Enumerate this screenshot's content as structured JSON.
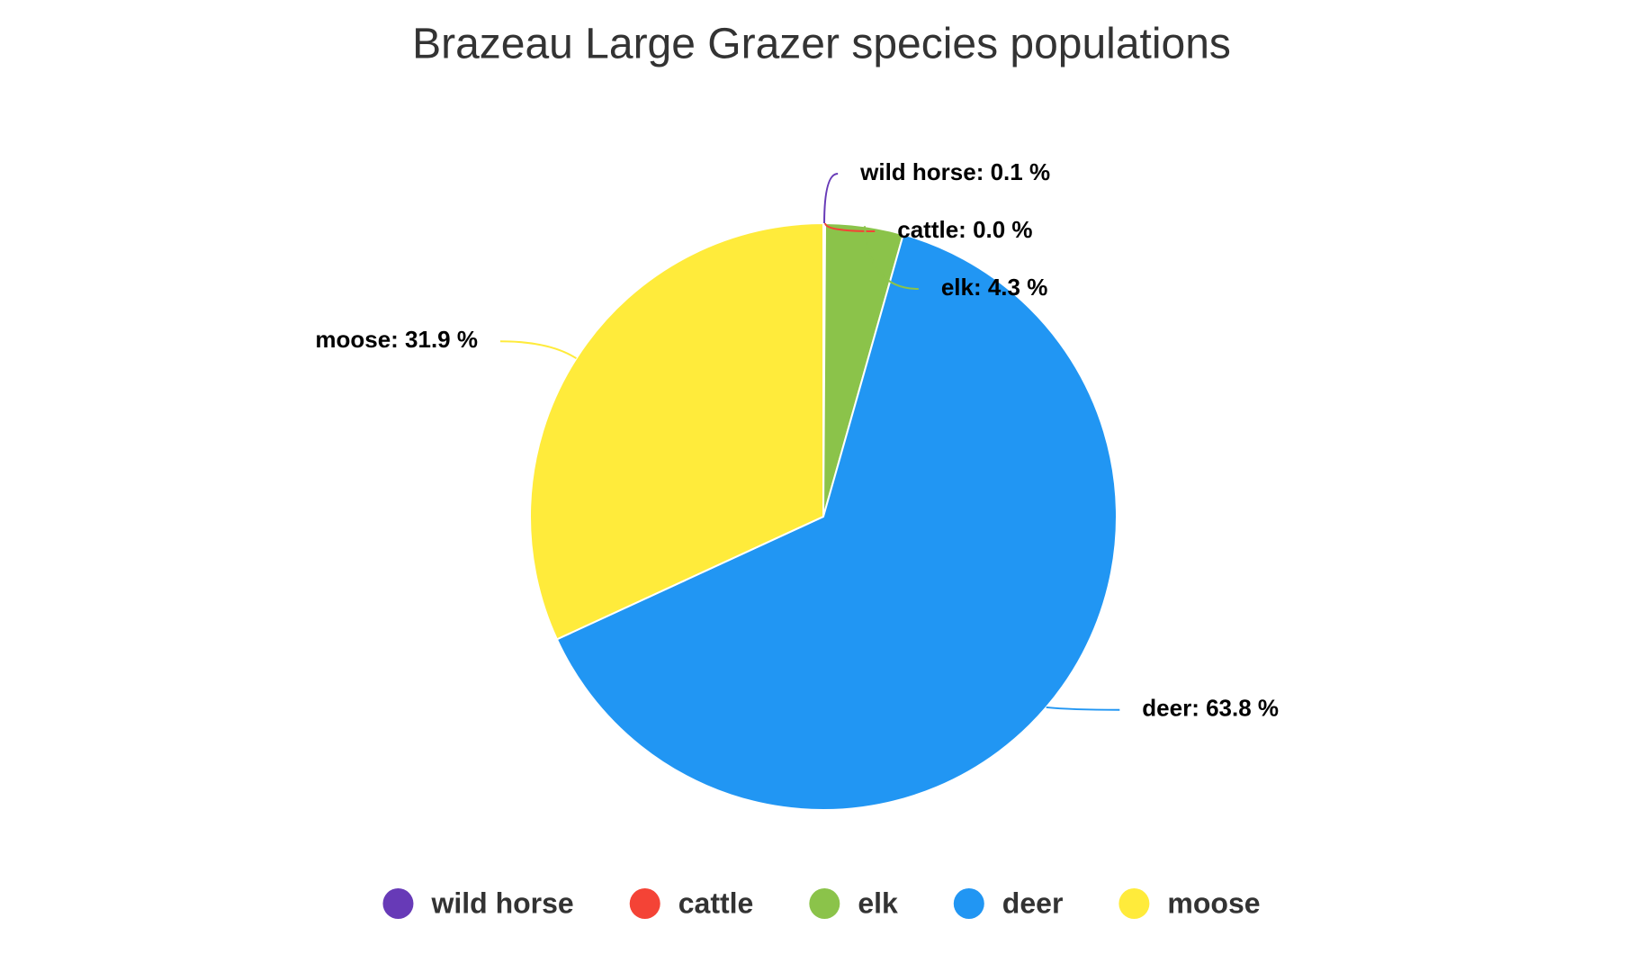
{
  "chart_data": {
    "type": "pie",
    "title": "Brazeau Large Grazer species populations",
    "categories": [
      "wild horse",
      "cattle",
      "elk",
      "deer",
      "moose"
    ],
    "values": [
      0.1,
      0.0,
      4.3,
      63.8,
      31.9
    ],
    "value_labels": [
      "wild horse: 0.1 %",
      "cattle: 0.0 %",
      "elk: 4.3 %",
      "deer: 63.8 %",
      "moose: 31.9 %"
    ],
    "colors": [
      "#673ab7",
      "#f44336",
      "#8bc34a",
      "#2196f3",
      "#ffeb3b"
    ],
    "legend": "bottom"
  }
}
